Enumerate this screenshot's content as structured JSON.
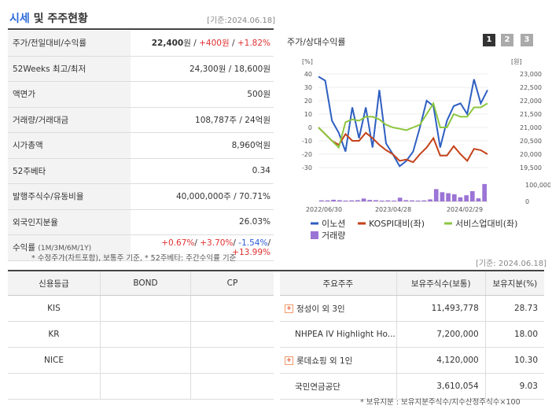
{
  "header": {
    "title_a": "시세",
    "title_b": " 및 주주현황",
    "base_date": "[기준:2024.06.18]"
  },
  "price_table": {
    "rows": [
      {
        "label": "주가/전일대비/수익률",
        "parts": [
          {
            "t": "22,400",
            "c": "bold"
          },
          {
            "t": "원 / ",
            "c": ""
          },
          {
            "t": "+400원",
            "c": "red"
          },
          {
            "t": " / ",
            "c": ""
          },
          {
            "t": "+1.82%",
            "c": "red"
          }
        ]
      },
      {
        "label": "52Weeks 최고/최저",
        "parts": [
          {
            "t": "24,300원 / 18,600원",
            "c": ""
          }
        ]
      },
      {
        "label": "액면가",
        "parts": [
          {
            "t": "500원",
            "c": ""
          }
        ]
      },
      {
        "label": "거래량/거래대금",
        "parts": [
          {
            "t": "108,787주 / 24억원",
            "c": ""
          }
        ]
      },
      {
        "label": "시가총액",
        "parts": [
          {
            "t": "8,960억원",
            "c": ""
          }
        ]
      },
      {
        "label": "52주베타",
        "parts": [
          {
            "t": "0.34",
            "c": ""
          }
        ]
      },
      {
        "label": "발행주식수/유동비율",
        "parts": [
          {
            "t": "40,000,000주 / 70.71%",
            "c": ""
          }
        ]
      },
      {
        "label": "외국인지분율",
        "parts": [
          {
            "t": "26.03%",
            "c": ""
          }
        ]
      }
    ],
    "returns_label": "수익률",
    "returns_label_small": "(1M/3M/6M/1Y)",
    "returns_parts": [
      {
        "t": "+0.67%",
        "c": "red"
      },
      {
        "t": "/ ",
        "c": ""
      },
      {
        "t": "+3.70%",
        "c": "red"
      },
      {
        "t": "/ ",
        "c": ""
      },
      {
        "t": "-1.54%",
        "c": "blue"
      },
      {
        "t": "/ ",
        "c": ""
      },
      {
        "t": "+13.99%",
        "c": "red"
      }
    ],
    "note": "* 수정주가(차트포함), 보통주 기준, * 52주베타: 주간수익률 기준"
  },
  "chart": {
    "title": "주가/상대수익률",
    "period_buttons": [
      "1",
      "2",
      "3"
    ],
    "colors": {
      "active": "#333333",
      "inactive": "#aaaaaa"
    }
  },
  "chart_data": {
    "type": "line",
    "left_axis_unit": "[%]",
    "right_axis_unit": "[원]",
    "left_ticks": [
      "40",
      "30",
      "20",
      "10",
      "0",
      "-10",
      "-20",
      "-30"
    ],
    "left_range": [
      -30,
      40
    ],
    "right_ticks": [
      "23,000",
      "22,500",
      "22,000",
      "21,500",
      "21,000",
      "20,500",
      "20,000",
      "19,500"
    ],
    "right_range": [
      19500,
      23000
    ],
    "volume_ticks": [
      "100,000",
      "0"
    ],
    "volume_range": [
      0,
      100000
    ],
    "x_labels": [
      "2022/06/30",
      "2023/04/28",
      "2024/02/29"
    ],
    "series": [
      {
        "name": "이노션",
        "color": "#2e5fc1",
        "values": [
          38,
          35,
          5,
          -4,
          -18,
          15,
          -8,
          15,
          -15,
          28,
          -12,
          -20,
          -29,
          -25,
          -18,
          0,
          20,
          16,
          -15,
          5,
          16,
          18,
          10,
          36,
          18,
          28
        ]
      },
      {
        "name": "KOSPI대비(좌)",
        "color": "#c4421a",
        "values": [
          0,
          -5,
          -10,
          -13,
          -5,
          -10,
          -10,
          -4,
          -8,
          -13,
          -17,
          -20,
          -25,
          -24,
          -26,
          -20,
          -15,
          -8,
          -21,
          -21,
          -14,
          -20,
          -25,
          -16,
          -17,
          -20
        ]
      },
      {
        "name": "서비스업대비(좌)",
        "color": "#8cc63f",
        "values": [
          0,
          -5,
          -10,
          -15,
          4,
          6,
          5,
          8,
          8,
          6,
          2,
          0,
          -1,
          -2,
          0,
          2,
          10,
          18,
          0,
          0,
          10,
          8,
          8,
          15,
          15,
          18
        ]
      }
    ],
    "volume": {
      "name": "거래량",
      "color": "#9b74d6",
      "values": [
        5,
        5,
        8,
        6,
        4,
        5,
        6,
        14,
        7,
        6,
        4,
        5,
        4,
        18,
        6,
        5,
        4,
        5,
        10,
        60,
        45,
        40,
        35,
        20,
        30,
        50,
        15,
        85
      ]
    }
  },
  "credit_table": {
    "base_date": "[기준: 2024.06.18]",
    "headers": [
      "신용등급",
      "BOND",
      "CP"
    ],
    "rows": [
      {
        "agency": "KIS",
        "bond": "",
        "cp": ""
      },
      {
        "agency": "KR",
        "bond": "",
        "cp": ""
      },
      {
        "agency": "NICE",
        "bond": "",
        "cp": ""
      },
      {
        "agency": "",
        "bond": "",
        "cp": ""
      }
    ]
  },
  "holder_table": {
    "headers": [
      "주요주주",
      "보유주식수(보통)",
      "보유지분(%)"
    ],
    "rows": [
      {
        "name": "정성이 외 3인",
        "expand": "+",
        "shares": "11,493,778",
        "pct": "28.73"
      },
      {
        "name": "NHPEA IV Highlight Ho...",
        "expand": "",
        "shares": "7,200,000",
        "pct": "18.00"
      },
      {
        "name": "롯데쇼핑 외 1인",
        "expand": "+",
        "shares": "4,120,000",
        "pct": "10.30"
      },
      {
        "name": "국민연금공단",
        "expand": "",
        "shares": "3,610,054",
        "pct": "9.03"
      }
    ],
    "note": "* 보유지분 : 보유지분주식수/지수산정주식수×100"
  }
}
